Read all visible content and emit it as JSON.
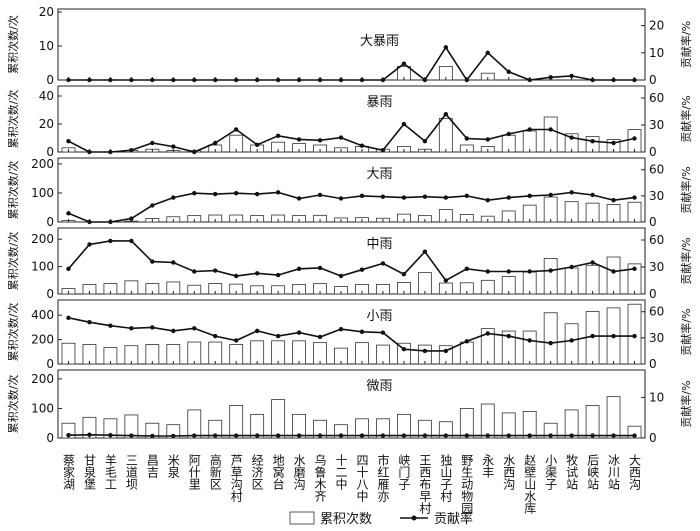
{
  "chart_data": {
    "type": "bar+line",
    "categories": [
      "蔡家湖",
      "甘泉堡",
      "羊毛工",
      "三道坝",
      "昌吉",
      "米泉",
      "阿什里",
      "高新区",
      "芦草沟村",
      "经济区",
      "地窝台",
      "水磨沟",
      "乌鲁木齐",
      "十二中",
      "四十八中",
      "市红雁亦",
      "峡门子",
      "王西布早村",
      "独山子村",
      "野生动物园",
      "永丰",
      "水西沟",
      "赵壁山水库",
      "小渠子",
      "牧试站",
      "后峡站",
      "冰川站",
      "大西沟"
    ],
    "legend": {
      "bar_label": "累积次数",
      "line_label": "贡献率"
    },
    "panels": [
      {
        "name": "大暴雨",
        "left_axis": {
          "label": "累积次数/次",
          "ylim": [
            0,
            20
          ],
          "ticks": [
            0,
            10,
            20
          ]
        },
        "right_axis": {
          "label": "贡献率/%",
          "ylim": [
            0,
            25
          ],
          "ticks": [
            0,
            10,
            20
          ]
        },
        "series": [
          {
            "name": "累积次数",
            "kind": "bar",
            "values": [
              0,
              0,
              0,
              0,
              0,
              0,
              0,
              0,
              0,
              0,
              0,
              0,
              0,
              0,
              0,
              0,
              4,
              0,
              4,
              0,
              2,
              0,
              0,
              0,
              0,
              0,
              0,
              0
            ]
          },
          {
            "name": "贡献率",
            "kind": "line",
            "values": [
              0,
              0,
              0,
              0,
              0,
              0,
              0,
              0,
              0,
              0,
              0,
              0,
              0,
              0,
              0,
              0,
              6,
              0,
              12,
              0,
              10,
              3,
              0,
              1,
              1.5,
              0,
              0,
              0
            ]
          }
        ]
      },
      {
        "name": "暴雨",
        "left_axis": {
          "label": "累积次数/次",
          "ylim": [
            0,
            45
          ],
          "ticks": [
            0,
            20,
            40
          ]
        },
        "right_axis": {
          "label": "贡献率/%",
          "ylim": [
            0,
            70
          ],
          "ticks": [
            0,
            30,
            60
          ]
        },
        "series": [
          {
            "name": "累积次数",
            "kind": "bar",
            "values": [
              3,
              0,
              0,
              1,
              2,
              1,
              1,
              5,
              12,
              5,
              7,
              6,
              5,
              3,
              4,
              2,
              4,
              2,
              24,
              5,
              4,
              12,
              15,
              25,
              13,
              11,
              9,
              16
            ]
          },
          {
            "name": "贡献率",
            "kind": "line",
            "values": [
              12,
              0,
              0,
              2,
              10,
              6,
              0,
              10,
              25,
              8,
              18,
              14,
              13,
              16,
              7,
              2,
              31,
              12,
              42,
              15,
              14,
              20,
              25,
              25,
              16,
              12,
              10,
              15
            ]
          }
        ]
      },
      {
        "name": "大雨",
        "left_axis": {
          "label": "累积次数/次",
          "ylim": [
            0,
            210
          ],
          "ticks": [
            0,
            100,
            200
          ]
        },
        "right_axis": {
          "label": "贡献率/%",
          "ylim": [
            0,
            70
          ],
          "ticks": [
            0,
            30,
            60
          ]
        },
        "series": [
          {
            "name": "累积次数",
            "kind": "bar",
            "values": [
              5,
              0,
              0,
              3,
              12,
              18,
              22,
              24,
              24,
              22,
              24,
              22,
              23,
              14,
              15,
              13,
              27,
              22,
              43,
              26,
              20,
              38,
              58,
              86,
              70,
              65,
              60,
              68
            ]
          },
          {
            "name": "贡献率",
            "kind": "line",
            "values": [
              10,
              0,
              0,
              4,
              19,
              28,
              33,
              32,
              33,
              32,
              34,
              27,
              31,
              27,
              30,
              29,
              28,
              29,
              28,
              30,
              25,
              28,
              30,
              31,
              34,
              31,
              25,
              28
            ]
          }
        ]
      },
      {
        "name": "中雨",
        "left_axis": {
          "label": "累积次数/次",
          "ylim": [
            0,
            230
          ],
          "ticks": [
            0,
            100,
            200
          ]
        },
        "right_axis": {
          "label": "贡献率/%",
          "ylim": [
            0,
            70
          ],
          "ticks": [
            0,
            30,
            60
          ]
        },
        "series": [
          {
            "name": "累积次数",
            "kind": "bar",
            "values": [
              20,
              35,
              38,
              48,
              38,
              44,
              32,
              38,
              36,
              30,
              30,
              35,
              38,
              27,
              35,
              35,
              42,
              78,
              40,
              41,
              50,
              64,
              80,
              130,
              95,
              105,
              135,
              110
            ]
          },
          {
            "name": "贡献率",
            "kind": "line",
            "values": [
              28,
              55,
              59,
              59,
              36,
              35,
              25,
              26,
              20,
              23,
              21,
              28,
              29,
              20,
              27,
              34,
              22,
              47,
              15,
              28,
              25,
              25,
              25,
              26,
              30,
              35,
              25,
              28
            ]
          }
        ]
      },
      {
        "name": "小雨",
        "left_axis": {
          "label": "累积次数/次",
          "ylim": [
            0,
            500
          ],
          "ticks": [
            0,
            200,
            400
          ]
        },
        "right_axis": {
          "label": "贡献率/%",
          "ylim": [
            0,
            70
          ],
          "ticks": [
            0,
            30,
            60
          ]
        },
        "series": [
          {
            "name": "累积次数",
            "kind": "bar",
            "values": [
              170,
              160,
              135,
              150,
              160,
              160,
              180,
              180,
              160,
              190,
              190,
              190,
              175,
              130,
              175,
              155,
              170,
              155,
              150,
              180,
              290,
              270,
              270,
              420,
              330,
              430,
              460,
              490
            ]
          },
          {
            "name": "贡献率",
            "kind": "line",
            "values": [
              53,
              48,
              44,
              41,
              42,
              38,
              41,
              32,
              27,
              38,
              32,
              36,
              31,
              40,
              37,
              36,
              17,
              15,
              15,
              26,
              35,
              32,
              27,
              24,
              27,
              32,
              32,
              32
            ]
          }
        ]
      },
      {
        "name": "微雨",
        "left_axis": {
          "label": "累积次数/次",
          "ylim": [
            0,
            220
          ],
          "ticks": [
            0,
            100,
            200
          ]
        },
        "right_axis": {
          "label": "贡献率/%",
          "ylim": [
            0,
            16
          ],
          "ticks": [
            0,
            10
          ]
        },
        "series": [
          {
            "name": "累积次数",
            "kind": "bar",
            "values": [
              50,
              70,
              65,
              78,
              50,
              45,
              95,
              60,
              110,
              80,
              130,
              80,
              60,
              45,
              65,
              65,
              80,
              60,
              55,
              100,
              115,
              85,
              90,
              50,
              95,
              110,
              140,
              40
            ]
          },
          {
            "name": "贡献率",
            "kind": "line",
            "values": [
              0.7,
              0.8,
              0.7,
              0.6,
              0.5,
              0.5,
              0.6,
              0.6,
              0.6,
              0.6,
              0.6,
              0.6,
              0.6,
              0.6,
              0.6,
              0.6,
              0.6,
              0.6,
              0.6,
              0.6,
              0.6,
              0.6,
              0.6,
              0.6,
              0.6,
              0.6,
              0.6,
              0.6
            ]
          }
        ]
      }
    ]
  }
}
